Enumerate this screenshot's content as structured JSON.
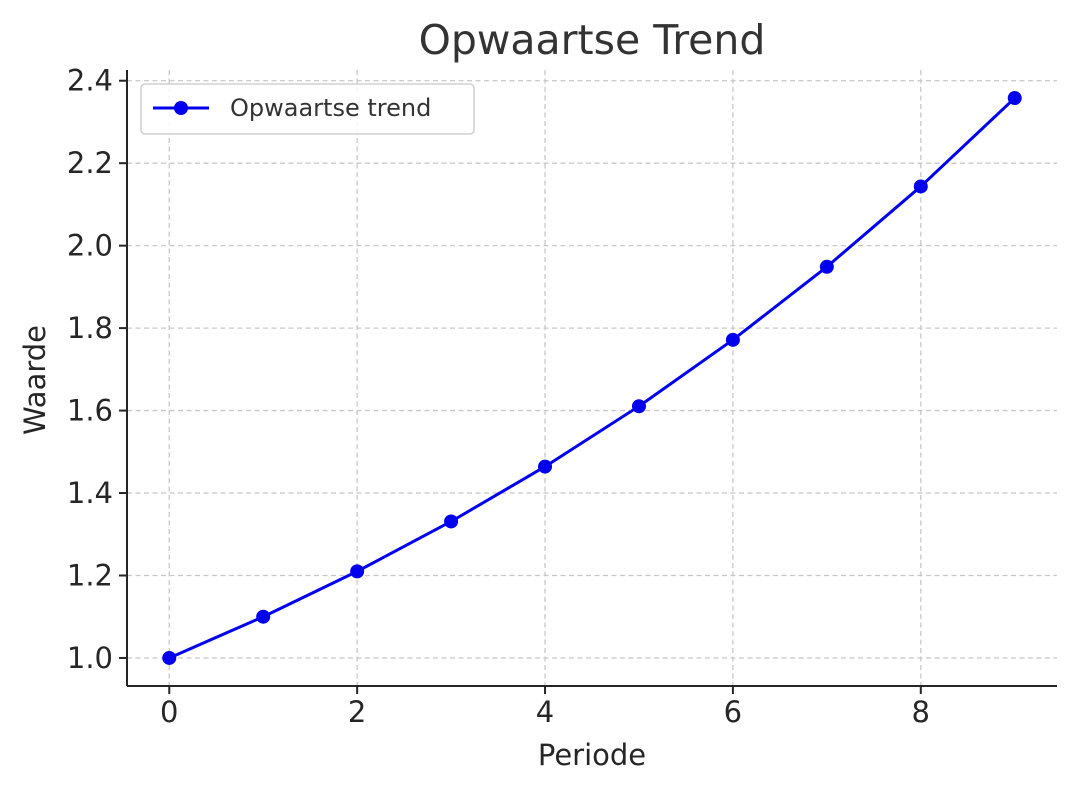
{
  "chart_data": {
    "type": "line",
    "title": "Opwaartse Trend",
    "xlabel": "Periode",
    "ylabel": "Waarde",
    "x": [
      0,
      1,
      2,
      3,
      4,
      5,
      6,
      7,
      8,
      9
    ],
    "series": [
      {
        "name": "Opwaartse trend",
        "values": [
          1.0,
          1.1,
          1.21,
          1.331,
          1.4641,
          1.61051,
          1.771561,
          1.948717,
          2.143589,
          2.357948
        ],
        "color": "#0000ee",
        "marker": "circle"
      }
    ],
    "xlim": [
      -0.45,
      9.45
    ],
    "ylim": [
      0.932,
      2.426
    ],
    "xticks": [
      0,
      2,
      4,
      6,
      8
    ],
    "xtick_labels": [
      "0",
      "2",
      "4",
      "6",
      "8"
    ],
    "yticks": [
      1.0,
      1.2,
      1.4,
      1.6,
      1.8,
      2.0,
      2.2,
      2.4
    ],
    "ytick_labels": [
      "1.0",
      "1.2",
      "1.4",
      "1.6",
      "1.8",
      "2.0",
      "2.2",
      "2.4"
    ],
    "grid": true,
    "legend_position": "top-left"
  }
}
